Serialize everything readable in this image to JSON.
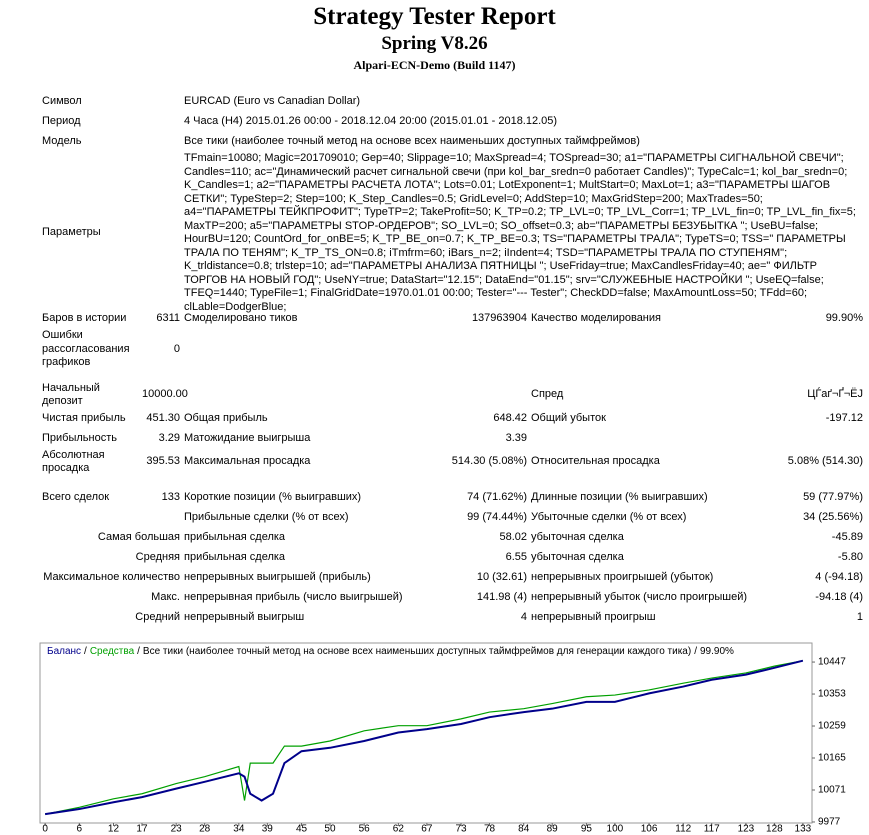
{
  "report": {
    "title": "Strategy Tester Report",
    "subtitle": "Spring V8.26",
    "build": "Alpari-ECN-Demo (Build 1147)",
    "info": [
      [
        "Символ",
        "EURCAD (Euro vs Canadian Dollar)"
      ],
      [
        "Период",
        "4 Часа (H4) 2015.01.26 00:00 - 2018.12.04 20:00 (2015.01.01 - 2018.12.05)"
      ],
      [
        "Модель",
        "Все тики (наиболее точный метод на основе всех наименьших доступных таймфреймов)"
      ],
      [
        "Параметры",
        "TFmain=10080; Magic=201709010; Gep=40; Slippage=10; MaxSpread=4; TOSpread=30; a1=\"ПАРАМЕТРЫ СИГНАЛЬНОЙ СВЕЧИ\"; Candles=110; ac=\"Динамический расчет сигнальной свечи (при kol_bar_sredn=0 работает Candles)\"; TypeCalc=1; kol_bar_sredn=0; K_Candles=1; a2=\"ПАРАМЕТРЫ РАСЧЕТА ЛОТА\"; Lots=0.01; LotExponent=1; MultStart=0; MaxLot=1; a3=\"ПАРАМЕТРЫ ШАГОВ СЕТКИ\"; TypeStep=2; Step=100; K_Step_Candles=0.5; GridLevel=0; AddStep=10; MaxGridStep=200; MaxTrades=50; a4=\"ПАРАМЕТРЫ ТЕЙКПРОФИТ\"; TypeTP=2; TakeProfit=50; K_TP=0.2; TP_LVL=0; TP_LVL_Corr=1; TP_LVL_fin=0; TP_LVL_fin_fix=5; MaxTP=200; a5=\"ПАРАМЕТРЫ STOP-ОРДЕРОВ\"; SO_LVL=0; SO_offset=0.3; ab=\"ПАРАМЕТРЫ БЕЗУБЫТКА \"; UseBU=false; HourBU=120; CountOrd_for_onBE=5; K_TP_BE_on=0.7; K_TP_BE=0.3; TS=\"ПАРАМЕТРЫ ТРАЛА\"; TypeTS=0; TSS=\" ПАРАМЕТРЫ ТРАЛА ПО ТЕНЯМ\"; K_TP_TS_ON=0.8; iTmfrm=60; iBars_n=2; iIndent=4; TSD=\"ПАРАМЕТРЫ ТРАЛА ПО СТУПЕНЯМ\"; K_trldistance=0.8; trlstep=10; ad=\"ПАРАМЕТРЫ АНАЛИЗА ПЯТНИЦЫ \"; UseFriday=true; MaxCandlesFriday=40; ae=\" ФИЛЬТР ТОРГОВ НА НОВЫЙ ГОД\"; UseNY=true; DataStart=\"12.15\"; DataEnd=\"01.15\"; srv=\"СЛУЖЕБНЫЕ НАСТРОЙКИ \"; UseEQ=false; TFEQ=1440; TypeFile=1; FinalGridDate=1970.01.01 00:00; Tester=\"--- Tester\"; CheckDD=false; MaxAmountLoss=50; TFdd=60; clLable=DodgerBlue;"
      ]
    ],
    "stats": [
      [
        "Баров в истории",
        "6311",
        "Смоделировано тиков",
        "137963904",
        "Качество моделирования",
        "99.90%"
      ],
      [
        "Ошибки рассогласования графиков",
        "0",
        null,
        null,
        null,
        null
      ],
      [
        "Начальный депозит",
        "10000.00",
        null,
        null,
        "Спред",
        "ЦЃаґ¬Ґ¬ЁЈ"
      ],
      [
        "Чистая прибыль",
        "451.30",
        "Общая прибыль",
        "648.42",
        "Общий убыток",
        "-197.12"
      ],
      [
        "Прибыльность",
        "3.29",
        "Матожидание выигрыша",
        "3.39",
        null,
        null
      ],
      [
        "Абсолютная просадка",
        "395.53",
        "Максимальная просадка",
        "514.30 (5.08%)",
        "Относительная просадка",
        "5.08% (514.30)"
      ],
      [
        "Всего сделок",
        "133",
        "Короткие позиции (% выигравших)",
        "74 (71.62%)",
        "Длинные позиции (% выигравших)",
        "59 (77.97%)"
      ],
      [
        null,
        null,
        "Прибыльные сделки (% от всех)",
        "99 (74.44%)",
        "Убыточные сделки (% от всех)",
        "34 (25.56%)"
      ],
      [
        "Самая большая",
        null,
        "прибыльная сделка",
        "58.02",
        "убыточная сделка",
        "-45.89"
      ],
      [
        "Средняя",
        null,
        "прибыльная сделка",
        "6.55",
        "убыточная сделка",
        "-5.80"
      ],
      [
        "Максимальное количество",
        null,
        "непрерывных выигрышей (прибыль)",
        "10 (32.61)",
        "непрерывных проигрышей (убыток)",
        "4 (-94.18)"
      ],
      [
        "Макс.",
        null,
        "непрерывная прибыль (число выигрышей)",
        "141.98 (4)",
        "непрерывный убыток (число проигрышей)",
        "-94.18 (4)"
      ],
      [
        "Средний",
        null,
        "непрерывный выигрыш",
        "4",
        "непрерывный проигрыш",
        "1"
      ]
    ]
  },
  "chart_data": {
    "type": "line",
    "separator": "/",
    "method": "Все тики (наиболее точный метод на основе всех наименьших доступных таймфреймов для генерации каждого тика)",
    "quality": "99.90%",
    "x": [
      0,
      6,
      12,
      17,
      23,
      28,
      34,
      35,
      36,
      38,
      40,
      42,
      45,
      50,
      56,
      62,
      67,
      73,
      78,
      84,
      89,
      95,
      100,
      106,
      112,
      117,
      123,
      128,
      133
    ],
    "series": [
      {
        "name": "Средства",
        "color": "#00a000",
        "values": [
          10000,
          10020,
          10045,
          10060,
          10090,
          10110,
          10140,
          10040,
          10150,
          10150,
          10150,
          10200,
          10200,
          10215,
          10245,
          10260,
          10260,
          10280,
          10300,
          10310,
          10325,
          10345,
          10350,
          10365,
          10385,
          10400,
          10415,
          10435,
          10451
        ]
      },
      {
        "name": "Баланс",
        "color": "#00008b",
        "values": [
          10000,
          10015,
          10035,
          10050,
          10075,
          10095,
          10120,
          10110,
          10060,
          10040,
          10060,
          10150,
          10185,
          10195,
          10215,
          10240,
          10250,
          10265,
          10285,
          10300,
          10310,
          10330,
          10330,
          10355,
          10375,
          10395,
          10410,
          10430,
          10451
        ]
      }
    ],
    "legend_order": [
      1,
      0
    ],
    "xlim": [
      -0.9,
      134.6
    ],
    "ylim": [
      9974,
      10503
    ],
    "xticks": [
      0,
      6,
      12,
      17,
      23,
      28,
      34,
      39,
      45,
      50,
      56,
      62,
      67,
      73,
      78,
      84,
      89,
      95,
      100,
      106,
      112,
      117,
      123,
      128,
      133
    ],
    "yticks": [
      9977,
      10071,
      10165,
      10259,
      10353,
      10447
    ],
    "grid": false
  }
}
